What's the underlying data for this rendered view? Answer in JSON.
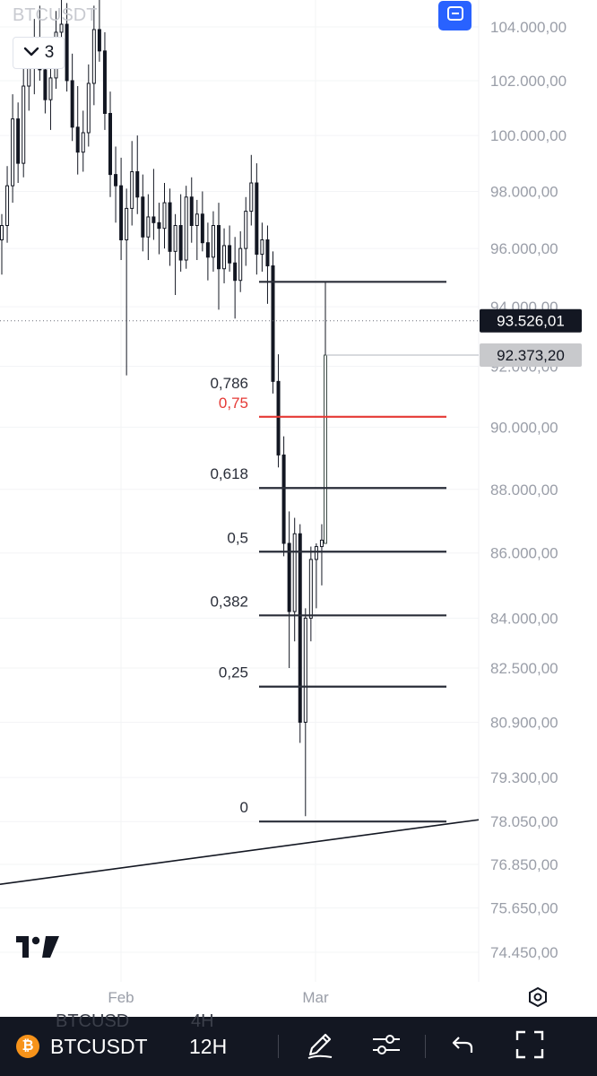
{
  "header": {
    "symbol_ghost": "BTCUSDT",
    "indicator_count": "3"
  },
  "colors": {
    "candle": "#131722",
    "fib_line": "#2a2e39",
    "fib_075": "#e53935",
    "badge_last": "#131722",
    "badge_target": "#c8c9cc",
    "accent": "#2962ff",
    "bottom_bar": "#131722"
  },
  "chart_data": {
    "type": "candlestick",
    "symbol": "BTCUSDT",
    "interval": "12H",
    "y_axis": {
      "labels": [
        "104.000,00",
        "102.000,00",
        "100.000,00",
        "98.000,00",
        "96.000,00",
        "94.000,00",
        "92.000,00",
        "90.000,00",
        "88.000,00",
        "86.000,00",
        "84.000,00",
        "82.500,00",
        "80.900,00",
        "79.300,00",
        "78.050,00",
        "76.850,00",
        "75.650,00",
        "74.450,00"
      ],
      "scale": "log",
      "range": [
        73800,
        105800
      ]
    },
    "x_axis": {
      "labels": [
        "Feb",
        "Mar"
      ]
    },
    "last_price": "93.526,01",
    "target_price": "92.373,20",
    "fibonacci": {
      "start_price": 78050,
      "end_price": 94850,
      "levels": [
        {
          "label": "0,786",
          "ratio": 0.786
        },
        {
          "label": "0,75",
          "ratio": 0.75,
          "highlight": true
        },
        {
          "label": "0,618",
          "ratio": 0.618
        },
        {
          "label": "0,5",
          "ratio": 0.5
        },
        {
          "label": "0,382",
          "ratio": 0.382
        },
        {
          "label": "0,25",
          "ratio": 0.25
        },
        {
          "label": "0",
          "ratio": 0
        }
      ]
    },
    "trendline": {
      "from_price": 76300,
      "to_price": 78100
    },
    "candles": [
      [
        96300,
        97200,
        95100,
        96800
      ],
      [
        96800,
        98900,
        96200,
        98200
      ],
      [
        98200,
        101500,
        97600,
        100600
      ],
      [
        100600,
        101200,
        98300,
        99000
      ],
      [
        99000,
        102500,
        98500,
        101800
      ],
      [
        101800,
        103400,
        100900,
        102600
      ],
      [
        102600,
        104300,
        101500,
        103200
      ],
      [
        103200,
        104800,
        102000,
        102400
      ],
      [
        102400,
        103600,
        100800,
        101300
      ],
      [
        101300,
        102900,
        100200,
        102100
      ],
      [
        102100,
        104600,
        101700,
        103800
      ],
      [
        103800,
        105200,
        102800,
        104100
      ],
      [
        104100,
        104900,
        101600,
        102000
      ],
      [
        102000,
        103000,
        99800,
        100300
      ],
      [
        100300,
        101800,
        98600,
        99400
      ],
      [
        99400,
        100900,
        98700,
        100100
      ],
      [
        100100,
        102600,
        99600,
        101900
      ],
      [
        101900,
        104800,
        101100,
        103900
      ],
      [
        103900,
        105600,
        102700,
        103100
      ],
      [
        103100,
        103800,
        100200,
        100800
      ],
      [
        100800,
        101600,
        97800,
        98600
      ],
      [
        98600,
        99600,
        96900,
        98200
      ],
      [
        98200,
        99200,
        95600,
        96300
      ],
      [
        96300,
        98100,
        91700,
        97400
      ],
      [
        97400,
        99800,
        96800,
        98700
      ],
      [
        98700,
        100000,
        97200,
        97800
      ],
      [
        97800,
        98600,
        95900,
        96400
      ],
      [
        96400,
        97900,
        95600,
        97100
      ],
      [
        97100,
        98800,
        96300,
        96900
      ],
      [
        96900,
        97600,
        95800,
        96700
      ],
      [
        96700,
        98300,
        96000,
        97600
      ],
      [
        97600,
        98100,
        95400,
        95900
      ],
      [
        95900,
        97200,
        94400,
        96800
      ],
      [
        96800,
        97900,
        95200,
        95600
      ],
      [
        95600,
        98200,
        95300,
        97800
      ],
      [
        97800,
        98500,
        96200,
        96800
      ],
      [
        96800,
        97700,
        95600,
        97200
      ],
      [
        97200,
        98000,
        95900,
        96200
      ],
      [
        96200,
        96900,
        94900,
        95700
      ],
      [
        95700,
        97300,
        95200,
        96800
      ],
      [
        96800,
        97600,
        93900,
        95300
      ],
      [
        95300,
        96700,
        94800,
        96100
      ],
      [
        96100,
        96800,
        95200,
        95500
      ],
      [
        95500,
        96400,
        93600,
        94900
      ],
      [
        94900,
        96600,
        94500,
        96000
      ],
      [
        96000,
        97800,
        95400,
        97300
      ],
      [
        97300,
        99300,
        96800,
        98300
      ],
      [
        98300,
        99000,
        95100,
        95800
      ],
      [
        95800,
        96900,
        95200,
        96300
      ],
      [
        96300,
        96800,
        94100,
        95400
      ],
      [
        95400,
        95900,
        91100,
        91500
      ],
      [
        91500,
        92400,
        88700,
        89100
      ],
      [
        89100,
        89700,
        85900,
        86300
      ],
      [
        86300,
        87300,
        82500,
        84200
      ],
      [
        84200,
        87100,
        83300,
        86600
      ],
      [
        86600,
        86900,
        80300,
        80900
      ],
      [
        80900,
        84300,
        78200,
        84000
      ],
      [
        84000,
        86200,
        83300,
        85800
      ],
      [
        85800,
        86300,
        84300,
        86200
      ],
      [
        86200,
        86900,
        85000,
        86400
      ]
    ]
  },
  "toolbar": {
    "symbol": "BTCUSDT",
    "interval": "12H",
    "ghost_symbol": "BTCUSD",
    "ghost_interval": "4H",
    "coin_glyph": "₿"
  }
}
